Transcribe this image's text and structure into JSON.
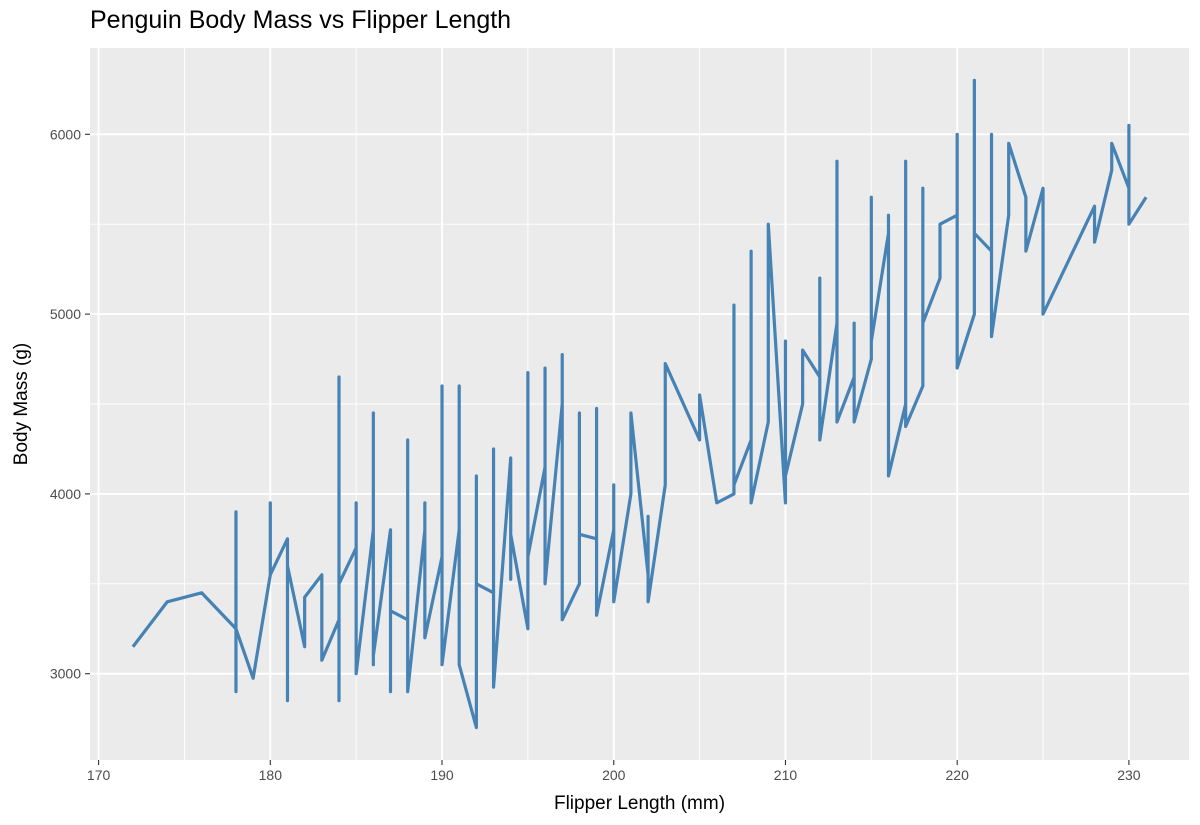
{
  "chart_data": {
    "type": "line",
    "title": "Penguin Body Mass vs Flipper Length",
    "xlabel": "Flipper Length (mm)",
    "ylabel": "Body Mass (g)",
    "xlim": [
      169.5,
      233.5
    ],
    "ylim": [
      2520,
      6480
    ],
    "x_ticks": [
      170,
      180,
      190,
      200,
      210,
      220,
      230
    ],
    "y_ticks": [
      3000,
      4000,
      5000,
      6000
    ],
    "grid": true,
    "line_color": "#4682b4",
    "panel_background": "#ebebeb",
    "grid_color": "#ffffff",
    "series": [
      {
        "x": [
          172,
          174,
          176,
          178,
          178,
          178,
          178,
          179,
          180,
          180,
          180,
          181,
          181,
          181,
          182,
          182,
          182,
          183,
          183,
          184,
          184,
          184,
          184,
          185,
          185,
          185,
          186,
          186,
          186,
          186,
          187,
          187,
          187,
          188,
          188,
          188,
          189,
          189,
          189,
          190,
          190,
          190,
          191,
          191,
          191,
          192,
          192,
          192,
          193,
          193,
          193,
          194,
          194,
          194,
          195,
          195,
          195,
          196,
          196,
          196,
          197,
          197,
          197,
          198,
          198,
          198,
          199,
          199,
          199,
          200,
          200,
          200,
          201,
          201,
          202,
          202,
          202,
          203,
          203,
          205,
          205,
          206,
          207,
          207,
          207,
          208,
          208,
          208,
          209,
          209,
          210,
          210,
          210,
          211,
          211,
          212,
          212,
          212,
          213,
          213,
          213,
          214,
          214,
          214,
          215,
          215,
          215,
          216,
          216,
          216,
          217,
          217,
          217,
          218,
          218,
          218,
          219,
          219,
          220,
          220,
          220,
          221,
          221,
          221,
          222,
          222,
          222,
          223,
          223,
          224,
          224,
          225,
          225,
          226,
          228,
          228,
          229,
          229,
          230,
          230,
          230,
          231
        ],
        "y": [
          3150,
          3400,
          3450,
          3250,
          3900,
          2900,
          3250,
          2975,
          3550,
          3950,
          3550,
          3750,
          2850,
          3600,
          3150,
          3200,
          3425,
          3550,
          3075,
          3300,
          4650,
          2850,
          3500,
          3700,
          3950,
          3000,
          3800,
          4450,
          3050,
          3100,
          3800,
          2900,
          3350,
          3300,
          4300,
          2900,
          3800,
          3950,
          3200,
          3650,
          4600,
          3050,
          3800,
          4600,
          3050,
          2700,
          4100,
          3500,
          3450,
          4250,
          2925,
          4200,
          3525,
          3775,
          3250,
          4675,
          3650,
          4150,
          4700,
          3500,
          4500,
          4775,
          3300,
          3500,
          4450,
          3775,
          3750,
          4475,
          3325,
          3800,
          4050,
          3400,
          4000,
          4450,
          3550,
          3875,
          3400,
          4050,
          4725,
          4300,
          4550,
          3950,
          4000,
          5050,
          4050,
          4300,
          5350,
          3950,
          4400,
          5500,
          3950,
          4850,
          4100,
          4500,
          4800,
          4650,
          5200,
          4300,
          4950,
          5850,
          4400,
          4650,
          4950,
          4400,
          4750,
          5650,
          4850,
          5450,
          5550,
          4100,
          4500,
          5850,
          4375,
          4600,
          5700,
          4950,
          5200,
          5500,
          5550,
          6000,
          4700,
          5000,
          6300,
          5450,
          5350,
          6000,
          4875,
          5550,
          5950,
          5650,
          5350,
          5700,
          5000,
          5200,
          5600,
          5400,
          5800,
          5950,
          5700,
          6050,
          5500,
          5650
        ]
      }
    ]
  }
}
